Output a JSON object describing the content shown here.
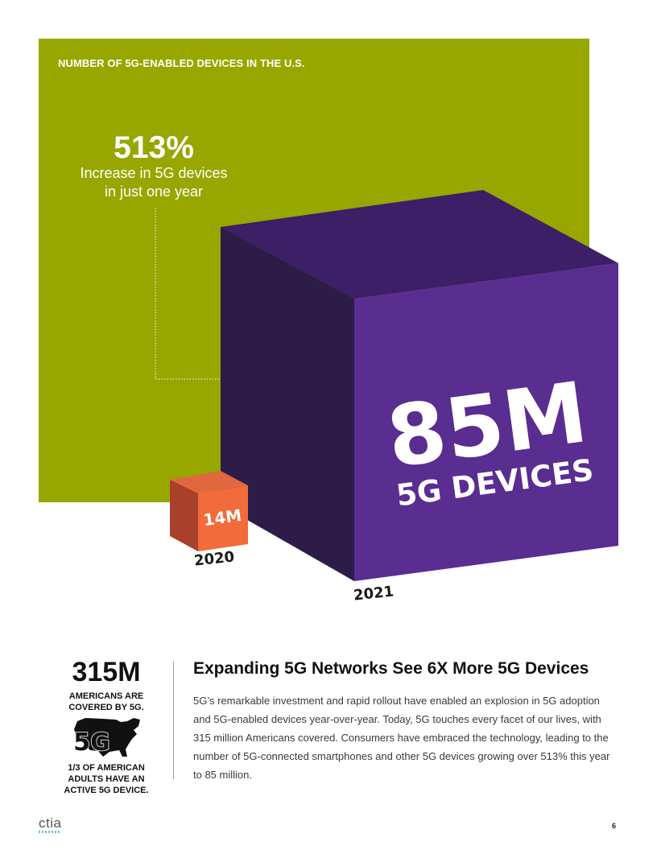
{
  "infographic": {
    "title": "NUMBER OF 5G-ENABLED DEVICES IN THE U.S.",
    "increase_pct": "513%",
    "increase_caption_line1": "Increase in 5G devices",
    "increase_caption_line2": "in just one year",
    "large_value": "85M",
    "large_caption": "5G DEVICES",
    "large_year": "2021",
    "small_value": "14M",
    "small_year": "2020",
    "colors": {
      "panel_green": "#97a700",
      "cube_purple": "#5a2d91",
      "cube_orange": "#f26b3a"
    }
  },
  "chart_data": {
    "type": "bar",
    "title": "NUMBER OF 5G-ENABLED DEVICES IN THE U.S.",
    "categories": [
      "2020",
      "2021"
    ],
    "values": [
      14,
      85
    ],
    "value_labels": [
      "14M",
      "85M"
    ],
    "annotation": "513%"
  },
  "sidebar_stat": {
    "value": "315M",
    "caption": "AMERICANS ARE COVERED BY 5G.",
    "icon": "5G",
    "footnote": "1/3 OF AMERICAN ADULTS HAVE AN ACTIVE 5G DEVICE."
  },
  "article": {
    "heading": "Expanding 5G Networks See 6X More 5G Devices",
    "body": "5G’s remarkable investment and rapid rollout have enabled an explosion in 5G adoption and 5G-enabled devices year-over-year. Today, 5G touches every facet of our lives, with 315 million Americans covered. Consumers have embraced the technology, leading to the number of 5G-connected smartphones and other 5G devices growing over 513% this year to 85 million."
  },
  "footer": {
    "logo": "ctia",
    "page_number": "6"
  }
}
